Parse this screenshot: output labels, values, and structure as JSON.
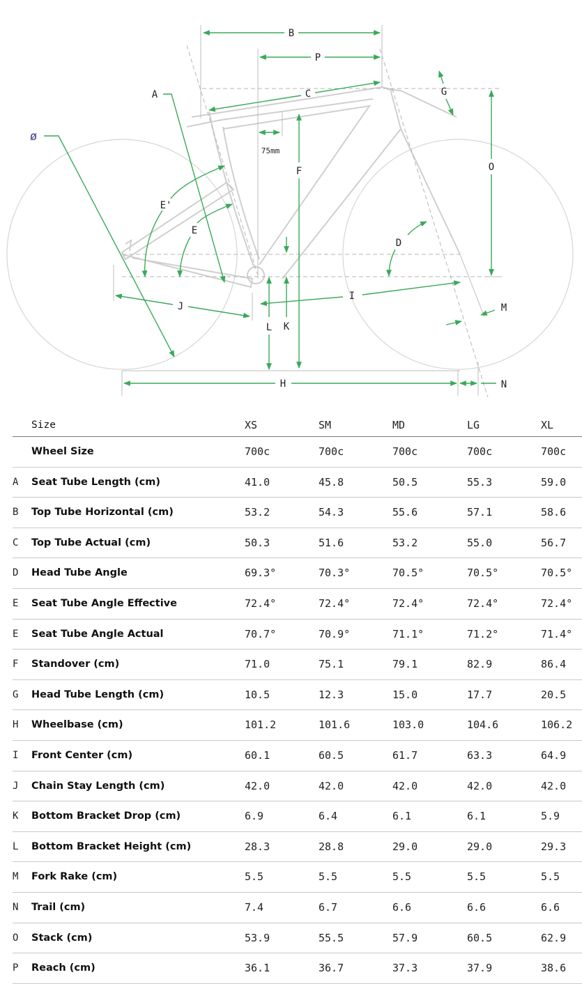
{
  "diagram": {
    "labels": {
      "A": "A",
      "B": "B",
      "C": "C",
      "D": "D",
      "E": "E",
      "E_prime": "E'",
      "F": "F",
      "G": "G",
      "H": "H",
      "I": "I",
      "J": "J",
      "K": "K",
      "L": "L",
      "M": "M",
      "N": "N",
      "O": "O",
      "P": "P",
      "diameter": "ø",
      "offset": "75mm"
    },
    "colors": {
      "arrow": "#3aa95a",
      "frame": "#cfcfcf",
      "guide": "#b5b5b5"
    }
  },
  "table": {
    "header": {
      "name": "Size",
      "sizes": [
        "XS",
        "SM",
        "MD",
        "LG",
        "XL"
      ]
    },
    "rows": [
      {
        "letter": "",
        "name": "Wheel Size",
        "values": [
          "700c",
          "700c",
          "700c",
          "700c",
          "700c"
        ]
      },
      {
        "letter": "A",
        "name": "Seat Tube Length (cm)",
        "values": [
          "41.0",
          "45.8",
          "50.5",
          "55.3",
          "59.0"
        ]
      },
      {
        "letter": "B",
        "name": "Top Tube Horizontal (cm)",
        "values": [
          "53.2",
          "54.3",
          "55.6",
          "57.1",
          "58.6"
        ]
      },
      {
        "letter": "C",
        "name": "Top Tube Actual (cm)",
        "values": [
          "50.3",
          "51.6",
          "53.2",
          "55.0",
          "56.7"
        ]
      },
      {
        "letter": "D",
        "name": "Head Tube Angle",
        "values": [
          "69.3°",
          "70.3°",
          "70.5°",
          "70.5°",
          "70.5°"
        ]
      },
      {
        "letter": "E",
        "name": "Seat Tube Angle Effective",
        "values": [
          "72.4°",
          "72.4°",
          "72.4°",
          "72.4°",
          "72.4°"
        ]
      },
      {
        "letter": "E",
        "name": "Seat Tube Angle Actual",
        "values": [
          "70.7°",
          "70.9°",
          "71.1°",
          "71.2°",
          "71.4°"
        ]
      },
      {
        "letter": "F",
        "name": "Standover (cm)",
        "values": [
          "71.0",
          "75.1",
          "79.1",
          "82.9",
          "86.4"
        ]
      },
      {
        "letter": "G",
        "name": "Head Tube Length (cm)",
        "values": [
          "10.5",
          "12.3",
          "15.0",
          "17.7",
          "20.5"
        ]
      },
      {
        "letter": "H",
        "name": "Wheelbase (cm)",
        "values": [
          "101.2",
          "101.6",
          "103.0",
          "104.6",
          "106.2"
        ]
      },
      {
        "letter": "I",
        "name": "Front Center (cm)",
        "values": [
          "60.1",
          "60.5",
          "61.7",
          "63.3",
          "64.9"
        ]
      },
      {
        "letter": "J",
        "name": "Chain Stay Length (cm)",
        "values": [
          "42.0",
          "42.0",
          "42.0",
          "42.0",
          "42.0"
        ]
      },
      {
        "letter": "K",
        "name": "Bottom Bracket Drop (cm)",
        "values": [
          "6.9",
          "6.4",
          "6.1",
          "6.1",
          "5.9"
        ]
      },
      {
        "letter": "L",
        "name": "Bottom Bracket Height (cm)",
        "values": [
          "28.3",
          "28.8",
          "29.0",
          "29.0",
          "29.3"
        ]
      },
      {
        "letter": "M",
        "name": "Fork Rake (cm)",
        "values": [
          "5.5",
          "5.5",
          "5.5",
          "5.5",
          "5.5"
        ]
      },
      {
        "letter": "N",
        "name": "Trail (cm)",
        "values": [
          "7.4",
          "6.7",
          "6.6",
          "6.6",
          "6.6"
        ]
      },
      {
        "letter": "O",
        "name": "Stack (cm)",
        "values": [
          "53.9",
          "55.5",
          "57.9",
          "60.5",
          "62.9"
        ]
      },
      {
        "letter": "P",
        "name": "Reach (cm)",
        "values": [
          "36.1",
          "36.7",
          "37.3",
          "37.9",
          "38.6"
        ]
      }
    ]
  }
}
